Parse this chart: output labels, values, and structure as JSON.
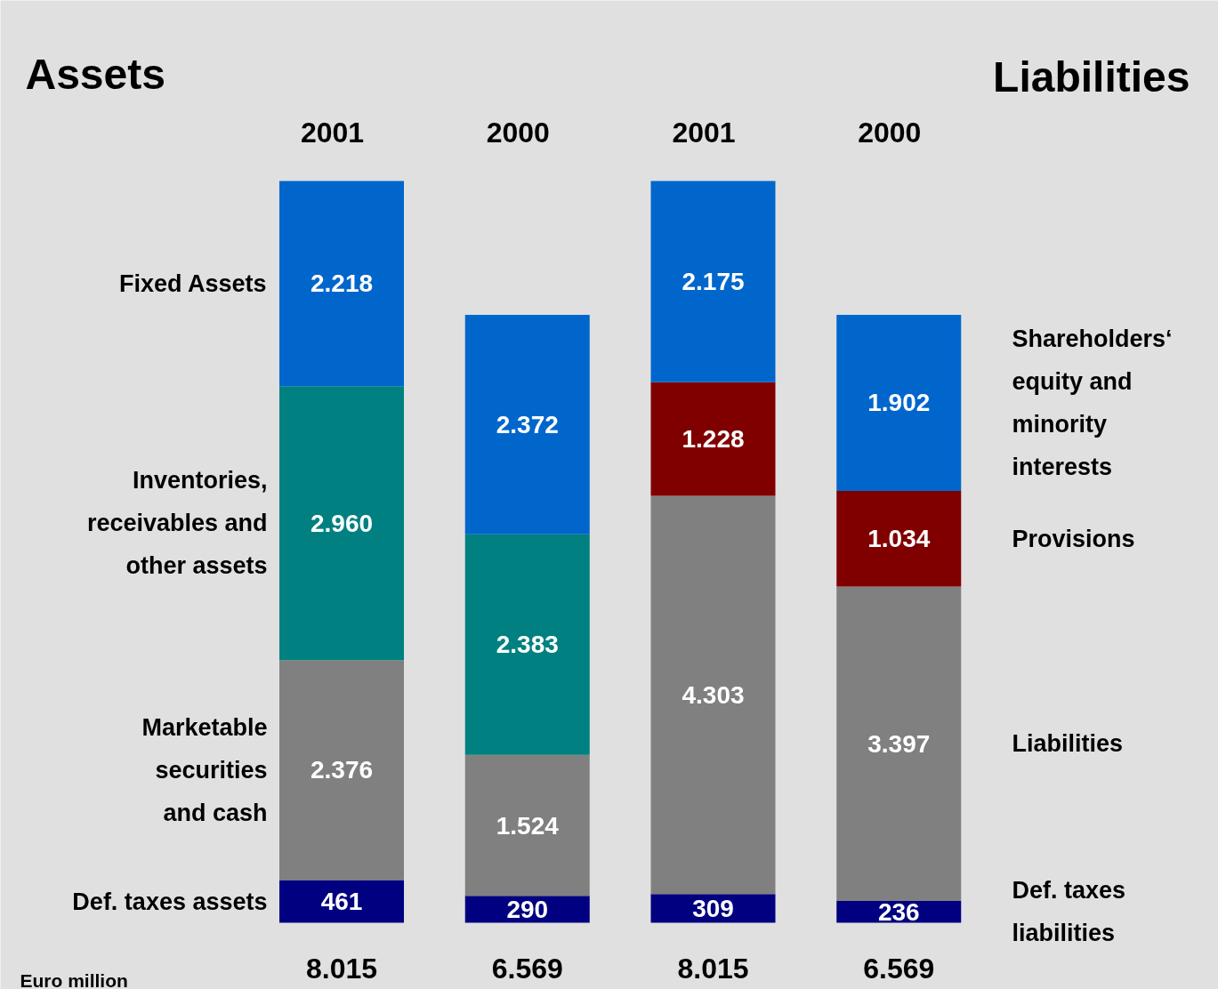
{
  "chart_data": {
    "type": "bar",
    "stacked": true,
    "title": "Assets",
    "categories": [
      "2001",
      "2000",
      "2001",
      "2000"
    ],
    "series": [
      {
        "name": "Def. taxes assets",
        "color": "#000080",
        "values": [
          461,
          290,
          null,
          null
        ],
        "value_labels": [
          "461",
          "290",
          null,
          null
        ]
      },
      {
        "name": "Def. taxes\nliabilities",
        "color": "#000080",
        "values": [
          null,
          null,
          309,
          236
        ],
        "value_labels": [
          null,
          null,
          "309",
          "236"
        ]
      },
      {
        "name": "Marketable\nsecurities\nand cash",
        "color": "#808080",
        "values": [
          2376,
          1524,
          null,
          null
        ],
        "value_labels": [
          "2.376",
          "1.524",
          null,
          null
        ]
      },
      {
        "name": "Liabilities",
        "color": "#808080",
        "values": [
          null,
          null,
          4303,
          3397
        ],
        "value_labels": [
          null,
          null,
          "4.303",
          "3.397"
        ]
      },
      {
        "name": "Inventories,\nreceivables and\nother assets",
        "color": "#008080",
        "values": [
          2960,
          2383,
          null,
          null
        ],
        "value_labels": [
          "2.960",
          "2.383",
          null,
          null
        ]
      },
      {
        "name": "Provisions",
        "color": "#800000",
        "values": [
          null,
          null,
          1228,
          1034
        ],
        "value_labels": [
          null,
          null,
          "1.228",
          "1.034"
        ]
      },
      {
        "name": "Fixed Assets",
        "color": "#0066cc",
        "values": [
          2218,
          2372,
          null,
          null
        ],
        "value_labels": [
          "2.218",
          "2.372",
          null,
          null
        ]
      },
      {
        "name": "Shareholders‘\nequity and\nminority\ninterests",
        "color": "#0066cc",
        "values": [
          null,
          null,
          2175,
          1902
        ],
        "value_labels": [
          null,
          null,
          "2.175",
          "1.902"
        ]
      }
    ],
    "totals": [
      "8.015",
      "6.569",
      "8.015",
      "6.569"
    ],
    "annotations": [
      "Liabilities",
      "Euro million"
    ],
    "tick_labels": "x"
  }
}
